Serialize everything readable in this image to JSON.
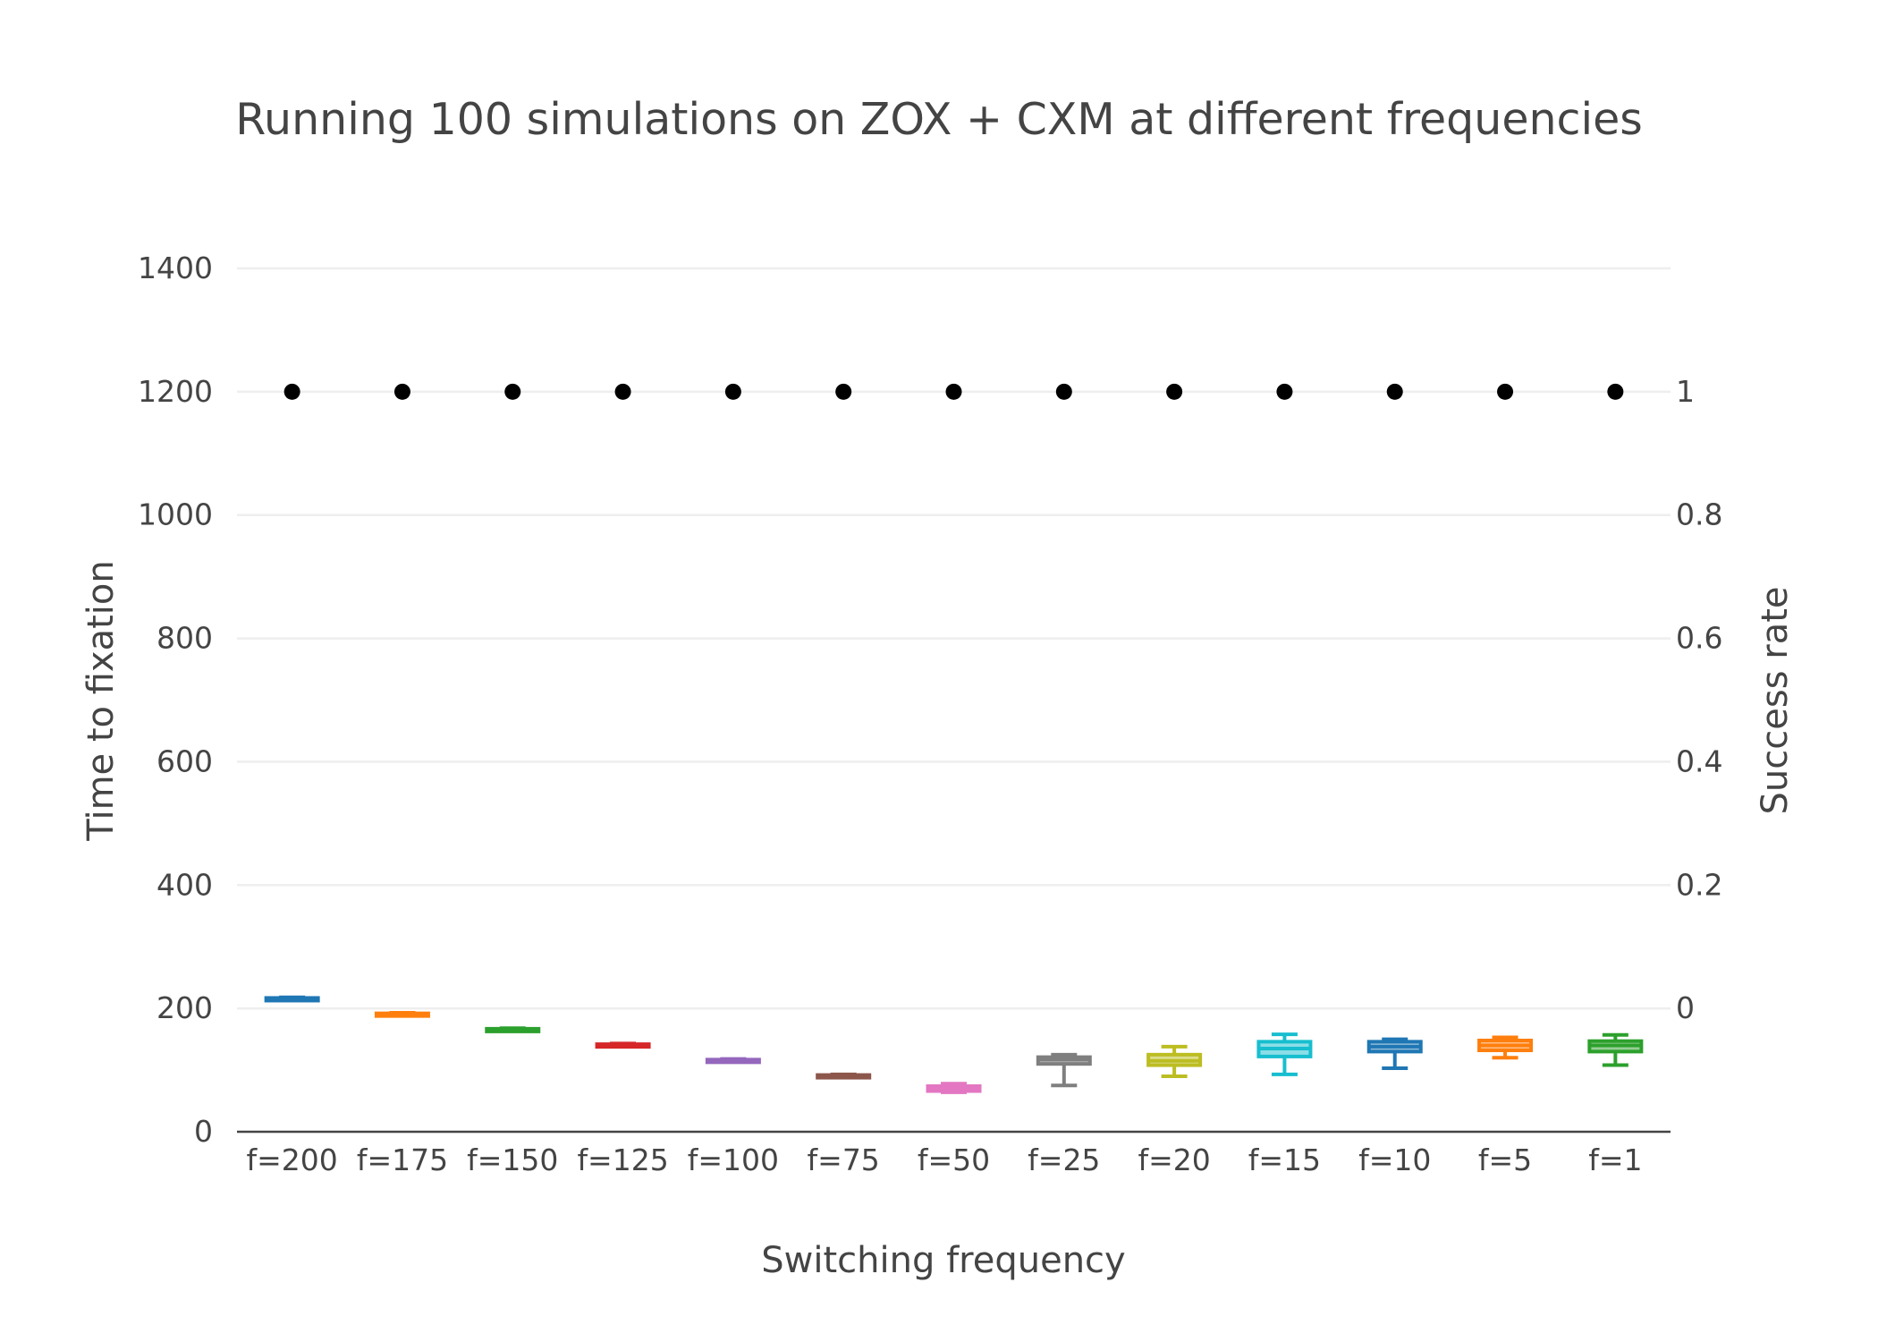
{
  "chart_data": {
    "type": "box",
    "title": "Running 100 simulations on ZOX + CXM at different frequencies",
    "xlabel": "Switching frequency",
    "ylabel": "Time to fixation",
    "y2label": "Success rate",
    "ylim": [
      0,
      1400
    ],
    "y2lim": [
      -0.2,
      1.2
    ],
    "yticks": [
      0,
      200,
      400,
      600,
      800,
      1000,
      1200,
      1400
    ],
    "y2ticks": [
      0,
      0.2,
      0.4,
      0.6,
      0.8,
      1
    ],
    "categories": [
      "f=200",
      "f=175",
      "f=150",
      "f=125",
      "f=100",
      "f=75",
      "f=50",
      "f=25",
      "f=20",
      "f=15",
      "f=10",
      "f=5",
      "f=1"
    ],
    "colors": [
      "#1f77b4",
      "#ff7f0e",
      "#2ca02c",
      "#d62728",
      "#9467bd",
      "#8c564b",
      "#e377c2",
      "#7f7f7f",
      "#bcbd22",
      "#17becf",
      "#1f77b4",
      "#ff7f0e",
      "#2ca02c"
    ],
    "boxes": [
      {
        "min": 214,
        "q1": 215,
        "median": 216,
        "q3": 217,
        "max": 218
      },
      {
        "min": 189,
        "q1": 190,
        "median": 191,
        "q3": 192,
        "max": 193
      },
      {
        "min": 164,
        "q1": 165,
        "median": 166,
        "q3": 167,
        "max": 168
      },
      {
        "min": 139,
        "q1": 140,
        "median": 141,
        "q3": 142,
        "max": 143
      },
      {
        "min": 114,
        "q1": 115,
        "median": 116,
        "q3": 117,
        "max": 118
      },
      {
        "min": 89,
        "q1": 90,
        "median": 91,
        "q3": 92,
        "max": 93
      },
      {
        "min": 64,
        "q1": 66,
        "median": 70,
        "q3": 74,
        "max": 78
      },
      {
        "min": 75,
        "q1": 110,
        "median": 117,
        "q3": 121,
        "max": 125
      },
      {
        "min": 90,
        "q1": 108,
        "median": 115,
        "q3": 125,
        "max": 138
      },
      {
        "min": 93,
        "q1": 122,
        "median": 135,
        "q3": 146,
        "max": 158
      },
      {
        "min": 103,
        "q1": 130,
        "median": 138,
        "q3": 146,
        "max": 150
      },
      {
        "min": 120,
        "q1": 132,
        "median": 140,
        "q3": 148,
        "max": 153
      },
      {
        "min": 108,
        "q1": 130,
        "median": 140,
        "q3": 147,
        "max": 157
      }
    ],
    "success_rate": [
      1,
      1,
      1,
      1,
      1,
      1,
      1,
      1,
      1,
      1,
      1,
      1,
      1
    ],
    "success_color": "#000000"
  }
}
